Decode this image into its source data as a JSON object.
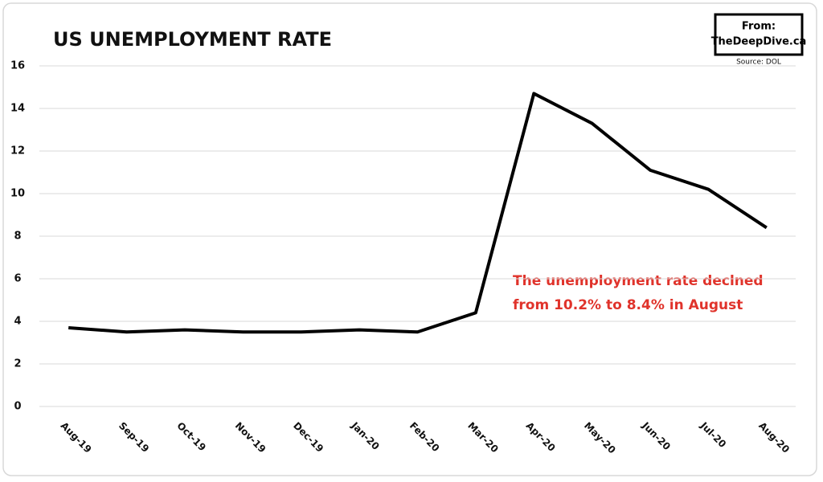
{
  "chart_data": {
    "type": "line",
    "title": "US UNEMPLOYMENT RATE",
    "categories": [
      "Aug-19",
      "Sep-19",
      "Oct-19",
      "Nov-19",
      "Dec-19",
      "Jan-20",
      "Feb-20",
      "Mar-20",
      "Apr-20",
      "May-20",
      "Jun-20",
      "Jul-20",
      "Aug-20"
    ],
    "values": [
      3.7,
      3.5,
      3.6,
      3.5,
      3.5,
      3.6,
      3.5,
      4.4,
      14.7,
      13.3,
      11.1,
      10.2,
      8.4
    ],
    "color": "#000000",
    "ylim": [
      0,
      16
    ],
    "yticks": [
      0,
      2,
      4,
      6,
      8,
      10,
      12,
      14,
      16
    ],
    "grid": true,
    "annotation": [
      "The unemployment rate declned",
      "from 10.2% to 8.4% in August"
    ],
    "annotation_color": "#e0332b",
    "credit": [
      "From:",
      "TheDeepDive.ca"
    ],
    "source": "Source: DOL"
  }
}
